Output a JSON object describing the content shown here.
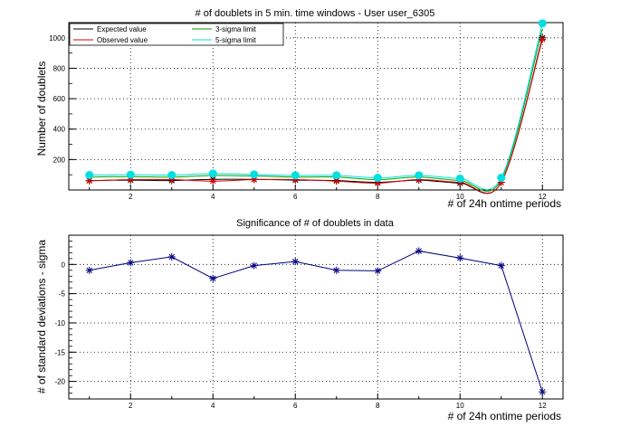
{
  "chart_data": [
    {
      "type": "line",
      "title": "# of doublets in 5 min. time windows - User user_6305",
      "xlabel": "# of 24h ontime periods",
      "ylabel": "Number of doublets",
      "xlim": [
        0.5,
        12.5
      ],
      "ylim": [
        0,
        1100
      ],
      "xticks": [
        2,
        4,
        6,
        8,
        10,
        12
      ],
      "yticks": [
        200,
        400,
        600,
        800,
        1000
      ],
      "grid": true,
      "legend": "top-left",
      "x": [
        1,
        2,
        3,
        4,
        5,
        6,
        7,
        8,
        9,
        10,
        11,
        12
      ],
      "series": [
        {
          "name": "Expected value",
          "color": "#000000",
          "marker": "star",
          "values": [
            62,
            65,
            62,
            70,
            70,
            65,
            62,
            50,
            65,
            45,
            50,
            1000
          ]
        },
        {
          "name": "Observed value",
          "color": "#dd0000",
          "marker": "star",
          "values": [
            60,
            68,
            68,
            58,
            68,
            68,
            58,
            45,
            68,
            50,
            50,
            990
          ]
        },
        {
          "name": "3-sigma limit",
          "color": "#00a000",
          "marker": "none",
          "values": [
            85,
            88,
            85,
            95,
            92,
            85,
            85,
            68,
            85,
            62,
            68,
            1060
          ]
        },
        {
          "name": "5-sigma limit",
          "color": "#00e0e0",
          "marker": "circle",
          "values": [
            98,
            100,
            98,
            108,
            102,
            96,
            96,
            80,
            96,
            75,
            80,
            1095
          ]
        }
      ]
    },
    {
      "type": "line",
      "title": "Significance of # of doublets in data",
      "xlabel": "# of 24h ontime periods",
      "ylabel": "# of standard deviations - sigma",
      "xlim": [
        0.5,
        12.5
      ],
      "ylim": [
        -23,
        5
      ],
      "xticks": [
        2,
        4,
        6,
        8,
        10,
        12
      ],
      "yticks": [
        0,
        -5,
        -10,
        -15,
        -20
      ],
      "grid": true,
      "x": [
        1,
        2,
        3,
        4,
        5,
        6,
        7,
        8,
        9,
        10,
        11,
        12
      ],
      "series": [
        {
          "color": "#000080",
          "marker": "star",
          "values": [
            -1.0,
            0.3,
            1.3,
            -2.4,
            -0.2,
            0.5,
            -1.0,
            -1.1,
            2.3,
            1.1,
            -0.2,
            -21.8
          ]
        }
      ]
    }
  ]
}
